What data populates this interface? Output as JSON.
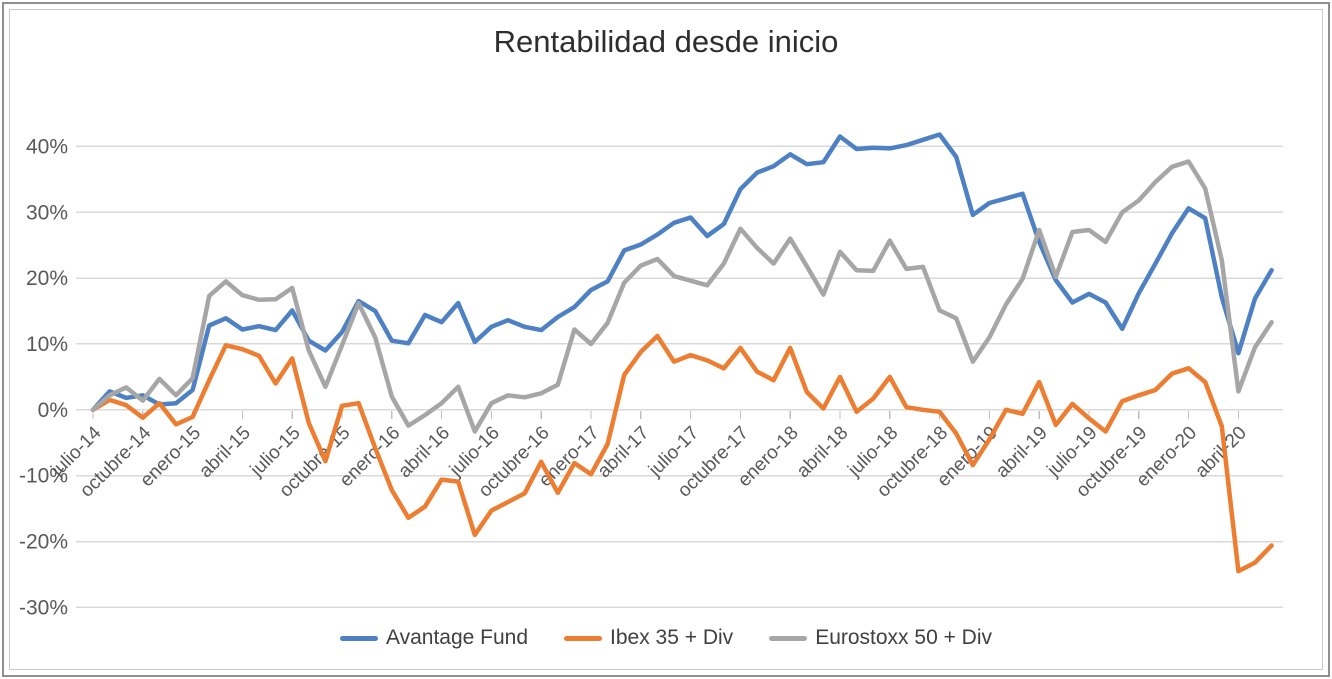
{
  "title": "Rentabilidad desde inicio",
  "legend": {
    "items": [
      {
        "label": "Avantage Fund",
        "color": "#4E81C4"
      },
      {
        "label": "Ibex 35 + Div",
        "color": "#ED7D31"
      },
      {
        "label": "Eurostoxx 50 + Div",
        "color": "#A6A6A6"
      }
    ]
  },
  "y_axis": {
    "tick_labels": [
      "40%",
      "30%",
      "20%",
      "10%",
      "0%",
      "-10%",
      "-20%",
      "-30%"
    ],
    "tick_values": [
      40,
      30,
      20,
      10,
      0,
      -10,
      -20,
      -30
    ]
  },
  "x_axis": {
    "tick_every": 3,
    "shown_tick_labels": [
      "julio-14",
      "octubre-14",
      "enero-15",
      "abril-15",
      "julio-15",
      "octubre-15",
      "enero-16",
      "abril-16",
      "julio-16",
      "octubre-16",
      "enero-17",
      "abril-17",
      "julio-17",
      "octubre-17",
      "enero-18",
      "abril-18",
      "julio-18",
      "octubre-18",
      "enero-19",
      "abril-19",
      "julio-19",
      "octubre-19",
      "enero-20",
      "abril-20"
    ]
  },
  "chart_data": {
    "type": "line",
    "title": "Rentabilidad desde inicio",
    "xlabel": "",
    "ylabel": "",
    "ylim": [
      -33,
      44
    ],
    "grid": true,
    "legend_position": "bottom",
    "x": [
      "julio-14",
      "agosto-14",
      "septiembre-14",
      "octubre-14",
      "noviembre-14",
      "diciembre-14",
      "enero-15",
      "febrero-15",
      "marzo-15",
      "abril-15",
      "mayo-15",
      "junio-15",
      "julio-15",
      "agosto-15",
      "septiembre-15",
      "octubre-15",
      "noviembre-15",
      "diciembre-15",
      "enero-16",
      "febrero-16",
      "marzo-16",
      "abril-16",
      "mayo-16",
      "junio-16",
      "julio-16",
      "agosto-16",
      "septiembre-16",
      "octubre-16",
      "noviembre-16",
      "diciembre-16",
      "enero-17",
      "febrero-17",
      "marzo-17",
      "abril-17",
      "mayo-17",
      "junio-17",
      "julio-17",
      "agosto-17",
      "septiembre-17",
      "octubre-17",
      "noviembre-17",
      "diciembre-17",
      "enero-18",
      "febrero-18",
      "marzo-18",
      "abril-18",
      "mayo-18",
      "junio-18",
      "julio-18",
      "agosto-18",
      "septiembre-18",
      "octubre-18",
      "noviembre-18",
      "diciembre-18",
      "enero-19",
      "febrero-19",
      "marzo-19",
      "abril-19",
      "mayo-19",
      "junio-19",
      "julio-19",
      "agosto-19",
      "septiembre-19",
      "octubre-19",
      "noviembre-19",
      "diciembre-19",
      "enero-20",
      "febrero-20",
      "marzo-20",
      "abril-20",
      "mayo-20",
      "junio-20"
    ],
    "series": [
      {
        "name": "Avantage Fund",
        "color": "#4E81C4",
        "values": [
          0.0,
          2.8,
          1.8,
          2.2,
          0.8,
          1.0,
          3.0,
          12.8,
          13.9,
          12.2,
          12.7,
          12.1,
          15.1,
          10.5,
          9.0,
          11.8,
          16.5,
          15.0,
          10.5,
          10.1,
          14.4,
          13.3,
          16.2,
          10.3,
          12.6,
          13.6,
          12.6,
          12.1,
          14.1,
          15.6,
          18.2,
          19.5,
          24.2,
          25.1,
          26.6,
          28.4,
          29.2,
          26.4,
          28.2,
          33.5,
          36.0,
          37.0,
          38.8,
          37.3,
          37.6,
          41.5,
          39.6,
          39.8,
          39.7,
          40.2,
          41.0,
          41.8,
          38.4,
          29.6,
          31.4,
          32.1,
          32.8,
          25.5,
          19.7,
          16.3,
          17.6,
          16.3,
          12.3,
          17.7,
          22.2,
          26.8,
          30.6,
          29.1,
          17.1,
          8.6,
          16.9,
          21.2
        ]
      },
      {
        "name": "Ibex 35 + Div",
        "color": "#ED7D31",
        "values": [
          0.0,
          1.5,
          0.7,
          -1.2,
          1.0,
          -2.2,
          -1.1,
          4.5,
          9.8,
          9.2,
          8.2,
          4.0,
          7.8,
          -2.0,
          -7.8,
          0.6,
          1.0,
          -5.8,
          -12.2,
          -16.4,
          -14.7,
          -10.6,
          -10.9,
          -19.0,
          -15.3,
          -14.0,
          -12.7,
          -7.9,
          -12.6,
          -8.1,
          -9.8,
          -5.2,
          5.3,
          8.8,
          11.2,
          7.3,
          8.3,
          7.5,
          6.3,
          9.4,
          5.8,
          4.5,
          9.4,
          2.7,
          0.2,
          5.0,
          -0.3,
          1.7,
          5.0,
          0.4,
          0.0,
          -0.3,
          -3.6,
          -8.4,
          -4.5,
          0.0,
          -0.6,
          4.2,
          -2.3,
          0.9,
          -1.3,
          -3.3,
          1.3,
          2.2,
          3.0,
          5.5,
          6.3,
          4.2,
          -2.5,
          -24.5,
          -23.2,
          -20.6
        ]
      },
      {
        "name": "Eurostoxx 50 + Div",
        "color": "#A6A6A6",
        "values": [
          0.0,
          2.2,
          3.4,
          1.4,
          4.7,
          2.2,
          4.8,
          17.3,
          19.5,
          17.4,
          16.7,
          16.8,
          18.5,
          9.0,
          3.5,
          9.8,
          16.2,
          11.0,
          2.0,
          -2.4,
          -0.8,
          1.0,
          3.5,
          -3.3,
          1.0,
          2.2,
          1.9,
          2.5,
          3.8,
          12.2,
          10.0,
          13.2,
          19.3,
          21.9,
          22.9,
          20.3,
          19.6,
          18.9,
          22.2,
          27.5,
          24.6,
          22.2,
          26.0,
          21.8,
          17.5,
          24.0,
          21.2,
          21.1,
          25.7,
          21.4,
          21.7,
          15.1,
          13.9,
          7.3,
          11.0,
          16.0,
          19.9,
          27.3,
          20.2,
          27.0,
          27.3,
          25.5,
          30.0,
          31.8,
          34.6,
          36.9,
          37.7,
          33.6,
          22.7,
          2.8,
          9.5,
          13.3
        ]
      }
    ]
  }
}
